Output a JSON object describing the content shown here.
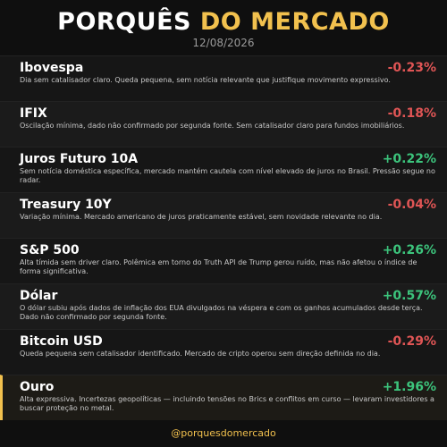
{
  "header": {
    "title_white": "PORQUÊS",
    "title_gold": "DO MERCADO",
    "date": "12/08/2026"
  },
  "items": [
    {
      "name": "Ibovespa",
      "change": "-0.23%",
      "description": "Dia sem catalisador claro. Queda pequena, sem notícia relevante que justifique movimento expressivo."
    },
    {
      "name": "IFIX",
      "change": "-0.18%",
      "description": "Oscilação mínima, dado não confirmado por segunda fonte. Sem catalisador claro para fundos imobiliários."
    },
    {
      "name": "Juros Futuro 10A",
      "change": "+0.22%",
      "description": "Sem notícia doméstica específica, mercado mantém cautela com nível elevado de juros no Brasil. Pressão segue no radar."
    },
    {
      "name": "Treasury 10Y",
      "change": "-0.04%",
      "description": "Variação mínima. Mercado americano de juros praticamente estável, sem novidade relevante no dia."
    },
    {
      "name": "S&P 500",
      "change": "+0.26%",
      "description": "Alta tímida sem driver claro. Polêmica em torno do Truth API de Trump gerou ruído, mas não afetou o índice de forma significativa."
    },
    {
      "name": "Dólar",
      "change": "+0.57%",
      "description": "O dólar subiu após dados de inflação dos EUA divulgados na véspera e com os ganhos acumulados desde terça. Dado não confirmado por segunda fonte."
    },
    {
      "name": "Bitcoin USD",
      "change": "-0.29%",
      "description": "Queda pequena sem catalisador identificado. Mercado de cripto operou sem direção definida no dia."
    },
    {
      "name": "Ouro",
      "change": "+1.96%",
      "description": "Alta expressiva. Incertezas geopolíticas — incluindo tensões no Brics e conflitos em curso — levaram investidores a buscar proteção no metal.",
      "highlight": true
    }
  ],
  "footer": {
    "handle": "@porquesdomercado"
  }
}
